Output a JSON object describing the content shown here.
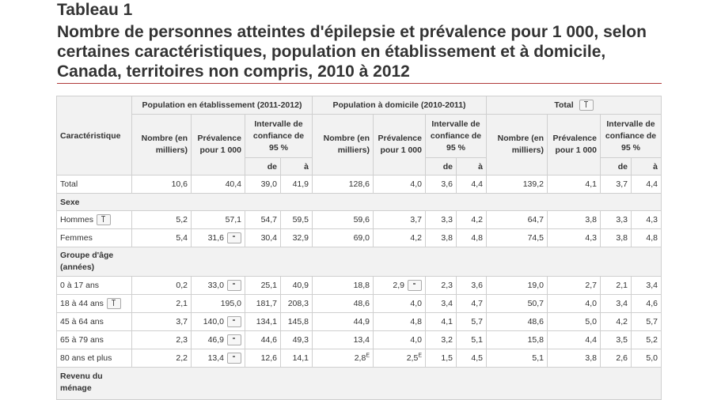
{
  "heading": {
    "tableau": "Tableau 1",
    "title": "Nombre de personnes atteintes d'épilepsie et prévalence pour 1 000, selon certaines caractéristiques, population en établissement et à domicile, Canada, territoires non compris, 2010 à 2012"
  },
  "table": {
    "corner": "Caractéristique",
    "groups": [
      "Population en établissement (2011-2012)",
      "Population à domicile (2010-2011)",
      "Total"
    ],
    "sub_headers": {
      "nombre": "Nombre (en milliers)",
      "prevalence": "Prévalence pour 1 000",
      "intervalle": "Intervalle de confiance de 95 %",
      "de": "de",
      "a": "à"
    },
    "rows": [
      {
        "label": "Total",
        "v": [
          "10,6",
          "40,4",
          "39,0",
          "41,9",
          "128,6",
          "4,0",
          "3,6",
          "4,4",
          "139,2",
          "4,1",
          "3,7",
          "4,4"
        ]
      },
      {
        "section": "Sexe"
      },
      {
        "label": "Hommes",
        "v": [
          "5,2",
          "57,1",
          "54,7",
          "59,5",
          "59,6",
          "3,7",
          "3,3",
          "4,2",
          "64,7",
          "3,8",
          "3,3",
          "4,3"
        ]
      },
      {
        "label": "Femmes",
        "v": [
          "5,4",
          "31,6",
          "30,4",
          "32,9",
          "69,0",
          "4,2",
          "3,8",
          "4,8",
          "74,5",
          "4,3",
          "3,8",
          "4,8"
        ]
      },
      {
        "section": "Groupe d'âge (années)"
      },
      {
        "label": "0 à 17 ans",
        "v": [
          "0,2",
          "33,0",
          "25,1",
          "40,9",
          "18,8",
          "2,9",
          "2,3",
          "3,6",
          "19,0",
          "2,7",
          "2,1",
          "3,4"
        ]
      },
      {
        "label": "18 à 44 ans",
        "v": [
          "2,1",
          "195,0",
          "181,7",
          "208,3",
          "48,6",
          "4,0",
          "3,4",
          "4,7",
          "50,7",
          "4,0",
          "3,4",
          "4,6"
        ]
      },
      {
        "label": "45 à 64 ans",
        "v": [
          "3,7",
          "140,0",
          "134,1",
          "145,8",
          "44,9",
          "4,8",
          "4,1",
          "5,7",
          "48,6",
          "5,0",
          "4,2",
          "5,7"
        ]
      },
      {
        "label": "65 à 79 ans",
        "v": [
          "2,3",
          "46,9",
          "44,6",
          "49,3",
          "13,4",
          "4,0",
          "3,2",
          "5,1",
          "15,8",
          "4,4",
          "3,5",
          "5,2"
        ]
      },
      {
        "label": "80 ans et plus",
        "v": [
          "2,2",
          "13,4",
          "12,6",
          "14,1",
          "2,8",
          "2,5",
          "1,5",
          "4,5",
          "5,1",
          "3,8",
          "2,6",
          "5,0"
        ]
      },
      {
        "section": "Revenu du ménage"
      }
    ],
    "superscript_e": "E"
  }
}
